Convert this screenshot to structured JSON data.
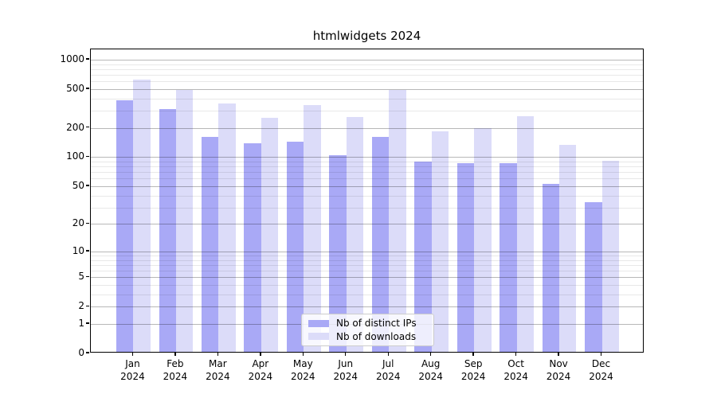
{
  "chart_data": {
    "type": "bar",
    "title": "htmlwidgets 2024",
    "xlabel": "",
    "ylabel": "",
    "yscale": "log1p",
    "grid": "both",
    "ylim": [
      0,
      1275
    ],
    "y_major_ticks": [
      0,
      1,
      2,
      5,
      10,
      20,
      50,
      100,
      200,
      500,
      1000
    ],
    "y_minor_ticks": [
      3,
      4,
      6,
      7,
      8,
      9,
      30,
      40,
      60,
      70,
      80,
      90,
      300,
      400,
      600,
      700,
      800,
      900
    ],
    "categories": [
      "Jan",
      "Feb",
      "Mar",
      "Apr",
      "May",
      "Jun",
      "Jul",
      "Aug",
      "Sep",
      "Oct",
      "Nov",
      "Dec"
    ],
    "x_tick_year": "2024",
    "series": [
      {
        "name": "Nb of distinct IPs",
        "color": "#a9a9f6",
        "values": [
          370,
          300,
          155,
          133,
          138,
          100,
          155,
          87,
          84,
          84,
          51,
          33
        ]
      },
      {
        "name": "Nb of downloads",
        "color": "#dcdcf9",
        "values": [
          600,
          470,
          340,
          243,
          330,
          250,
          470,
          178,
          190,
          255,
          130,
          89
        ]
      }
    ],
    "legend_position": "lower center"
  }
}
